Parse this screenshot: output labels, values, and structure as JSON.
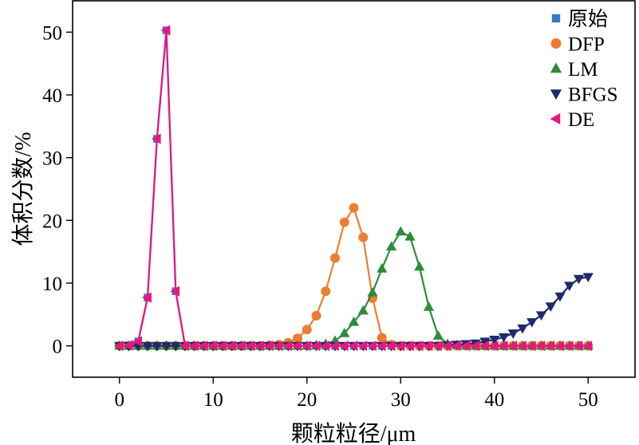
{
  "chart_data": {
    "type": "line",
    "xlabel": "颗粒粒径/μm",
    "ylabel": "体积分数/%",
    "xlim": [
      -5,
      55
    ],
    "ylim": [
      -5,
      55
    ],
    "xticks": [
      0,
      10,
      20,
      30,
      40,
      50
    ],
    "yticks": [
      0,
      10,
      20,
      30,
      40,
      50
    ],
    "grid": false,
    "legend_position": "top-right",
    "x": [
      0,
      1,
      2,
      3,
      4,
      5,
      6,
      7,
      8,
      9,
      10,
      11,
      12,
      13,
      14,
      15,
      16,
      17,
      18,
      19,
      20,
      21,
      22,
      23,
      24,
      25,
      26,
      27,
      28,
      29,
      30,
      31,
      32,
      33,
      34,
      35,
      36,
      37,
      38,
      39,
      40,
      41,
      42,
      43,
      44,
      45,
      46,
      47,
      48,
      49,
      50
    ],
    "series": [
      {
        "name": "原始",
        "color": "#3a7cc6",
        "marker": "square",
        "values": [
          0,
          0.1,
          0.7,
          7.7,
          33,
          50.3,
          8.7,
          0,
          0,
          0,
          0,
          0,
          0,
          0,
          0,
          0,
          0,
          0,
          0,
          0,
          0,
          0,
          0,
          0,
          0,
          0,
          0,
          0,
          0,
          0,
          0,
          0,
          0,
          0,
          0,
          0,
          0,
          0,
          0,
          0,
          0,
          0,
          0,
          0,
          0,
          0,
          0,
          0,
          0,
          0,
          0
        ]
      },
      {
        "name": "DFP",
        "color": "#ed7d31",
        "marker": "circle",
        "values": [
          0,
          0,
          0,
          0,
          0,
          0,
          0,
          0,
          0,
          0,
          0,
          0,
          0,
          0,
          0,
          0,
          0.1,
          0.2,
          0.5,
          1.2,
          2.6,
          4.8,
          8.7,
          14,
          19.7,
          22,
          17.3,
          7.6,
          1.3,
          0.2,
          0,
          0,
          0,
          0,
          0,
          0,
          0,
          0,
          0,
          0,
          0,
          0,
          0,
          0,
          0,
          0,
          0,
          0,
          0,
          0,
          0
        ]
      },
      {
        "name": "LM",
        "color": "#2e8b3c",
        "marker": "triangle-up",
        "values": [
          0,
          0,
          0,
          0,
          0,
          0,
          0,
          0,
          0,
          0,
          0,
          0,
          0,
          0,
          0,
          0,
          0,
          0,
          0,
          0,
          0,
          0.1,
          0.3,
          0.8,
          2,
          3.8,
          5.6,
          8.5,
          12.3,
          15.8,
          18.2,
          17.4,
          12.6,
          6.2,
          1.6,
          0.3,
          0.1,
          0,
          0,
          0,
          0,
          0,
          0,
          0,
          0,
          0,
          0,
          0,
          0,
          0,
          0
        ]
      },
      {
        "name": "BFGS",
        "color": "#1f2a6b",
        "marker": "triangle-down",
        "values": [
          0,
          0,
          0,
          0,
          0,
          0,
          0,
          0,
          0,
          0,
          0,
          0,
          0,
          0,
          0,
          0,
          0,
          0,
          0,
          0,
          0,
          0,
          0,
          0,
          0,
          0,
          0,
          0,
          0,
          0,
          0,
          0,
          0,
          0,
          0,
          0.1,
          0.2,
          0.3,
          0.4,
          0.7,
          1,
          1.4,
          2,
          2.8,
          3.8,
          4.9,
          6.3,
          7.9,
          9.6,
          10.7,
          11
        ]
      },
      {
        "name": "DE",
        "color": "#e8177f",
        "marker": "triangle-left",
        "values": [
          0,
          0.1,
          0.7,
          7.7,
          33,
          50.3,
          8.7,
          0,
          0,
          0,
          0,
          0,
          0,
          0,
          0,
          0,
          0,
          0,
          0,
          0,
          0,
          0,
          0,
          0,
          0,
          0,
          0,
          0,
          0,
          0,
          0,
          0,
          0,
          0,
          0,
          0,
          0,
          0,
          0,
          0,
          0,
          0,
          0,
          0,
          0,
          0,
          0,
          0,
          0,
          0,
          0
        ]
      }
    ]
  }
}
